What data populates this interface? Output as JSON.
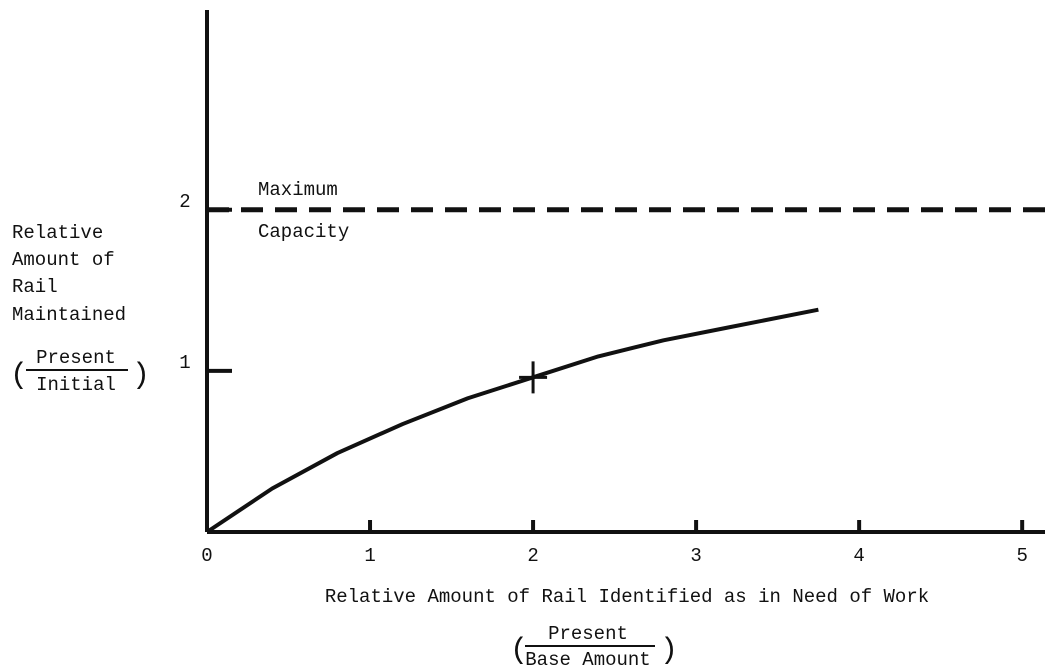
{
  "chart_data": {
    "type": "line",
    "y_label": [
      "Relative",
      "Amount of",
      "Rail",
      "Maintained"
    ],
    "y_label_fraction": {
      "numerator": "Present",
      "denominator": "Initial"
    },
    "x_label": "Relative Amount of Rail Identified as in Need of Work",
    "x_label_fraction": {
      "numerator": "Present",
      "denominator": "Base Amount"
    },
    "series": [
      {
        "color": "#111111",
        "x": [
          0,
          0.4,
          0.8,
          1.2,
          1.6,
          2,
          2.4,
          2.8,
          3.2,
          3.75
        ],
        "values": [
          0,
          0.27,
          0.49,
          0.67,
          0.83,
          0.96,
          1.09,
          1.19,
          1.27,
          1.38
        ]
      }
    ],
    "marker": {
      "x": 2,
      "y": 0.96
    },
    "reference_line": {
      "value": 2,
      "label": [
        "Maximum",
        "Capacity"
      ]
    },
    "xlim": [
      0,
      5.14
    ],
    "ylim": [
      0,
      3.24
    ],
    "xticks": [
      0,
      1,
      2,
      3,
      4,
      5
    ],
    "yticks": [
      1,
      2
    ]
  }
}
